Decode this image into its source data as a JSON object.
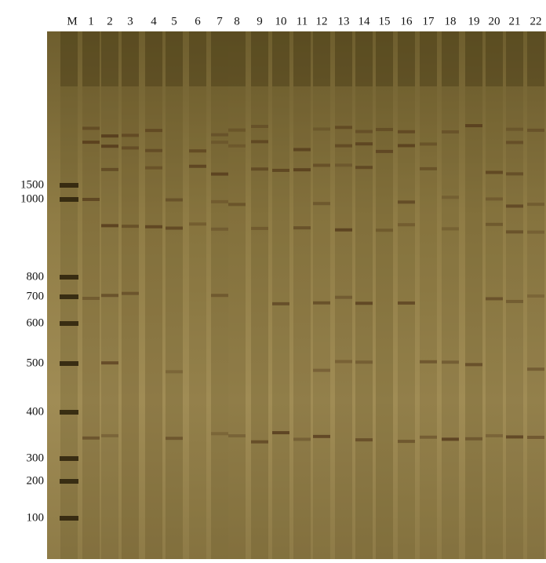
{
  "lanes": [
    "M",
    "1",
    "2",
    "3",
    "4",
    "5",
    "6",
    "7",
    "8",
    "9",
    "10",
    "11",
    "12",
    "13",
    "14",
    "15",
    "16",
    "17",
    "18",
    "19",
    "20",
    "21",
    "22"
  ],
  "markers": [
    "1500",
    "1000",
    "800",
    "700",
    "600",
    "500",
    "400",
    "300",
    "200",
    "100"
  ]
}
